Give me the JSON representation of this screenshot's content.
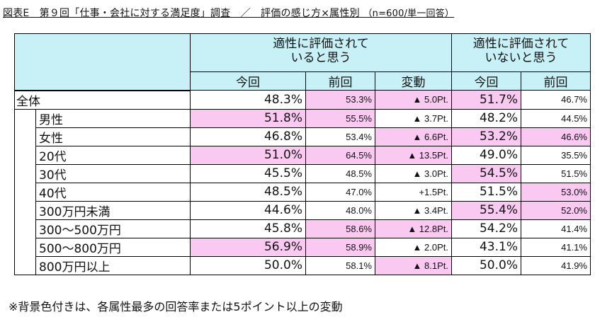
{
  "title": "図表E　第９回「仕事・会社に対する満足度」調査　／　評価の感じ方×属性別",
  "subtitle": "（n=600/単一回答）",
  "headers": {
    "group_a": "適性に評価されて\nいると思う",
    "group_b": "適性に評価されて\nいないと思う",
    "a_now": "今回",
    "a_prev": "前回",
    "a_change": "変動",
    "b_now": "今回",
    "b_prev": "前回"
  },
  "rows": [
    {
      "label": "全体",
      "a_now": "48.3%",
      "a_prev": "53.3%",
      "a_change": "▲ 5.0Pt.",
      "b_now": "51.7%",
      "b_prev": "46.7%"
    },
    {
      "label": "男性",
      "a_now": "51.8%",
      "a_prev": "55.5%",
      "a_change": "▲ 3.7Pt.",
      "b_now": "48.2%",
      "b_prev": "44.5%"
    },
    {
      "label": "女性",
      "a_now": "46.8%",
      "a_prev": "53.4%",
      "a_change": "▲ 6.6Pt.",
      "b_now": "53.2%",
      "b_prev": "46.6%"
    },
    {
      "label": "20代",
      "a_now": "51.0%",
      "a_prev": "64.5%",
      "a_change": "▲ 13.5Pt.",
      "b_now": "49.0%",
      "b_prev": "35.5%"
    },
    {
      "label": "30代",
      "a_now": "45.5%",
      "a_prev": "48.5%",
      "a_change": "▲ 3.0Pt.",
      "b_now": "54.5%",
      "b_prev": "51.5%"
    },
    {
      "label": "40代",
      "a_now": "48.5%",
      "a_prev": "47.0%",
      "a_change": "+1.5Pt.",
      "b_now": "51.5%",
      "b_prev": "53.0%"
    },
    {
      "label": "300万円未満",
      "a_now": "44.6%",
      "a_prev": "48.0%",
      "a_change": "▲ 3.4Pt.",
      "b_now": "55.4%",
      "b_prev": "52.0%"
    },
    {
      "label": "300～500万円",
      "a_now": "45.8%",
      "a_prev": "58.6%",
      "a_change": "▲ 12.8Pt.",
      "b_now": "54.2%",
      "b_prev": "41.4%"
    },
    {
      "label": "500～800万円",
      "a_now": "56.9%",
      "a_prev": "58.9%",
      "a_change": "▲ 2.0Pt.",
      "b_now": "43.1%",
      "b_prev": "41.1%"
    },
    {
      "label": "800万円以上",
      "a_now": "50.0%",
      "a_prev": "58.1%",
      "a_change": "▲ 8.1Pt.",
      "b_now": "50.0%",
      "b_prev": "41.9%"
    }
  ],
  "highlights": [
    {
      "a_now": false,
      "a_prev": true,
      "a_change": true,
      "b_now": true,
      "b_prev": false
    },
    {
      "a_now": true,
      "a_prev": true,
      "a_change": false,
      "b_now": false,
      "b_prev": false
    },
    {
      "a_now": false,
      "a_prev": false,
      "a_change": true,
      "b_now": true,
      "b_prev": true
    },
    {
      "a_now": true,
      "a_prev": true,
      "a_change": true,
      "b_now": false,
      "b_prev": false
    },
    {
      "a_now": false,
      "a_prev": false,
      "a_change": false,
      "b_now": true,
      "b_prev": false
    },
    {
      "a_now": false,
      "a_prev": false,
      "a_change": false,
      "b_now": false,
      "b_prev": true
    },
    {
      "a_now": false,
      "a_prev": false,
      "a_change": false,
      "b_now": true,
      "b_prev": true
    },
    {
      "a_now": false,
      "a_prev": true,
      "a_change": true,
      "b_now": false,
      "b_prev": false
    },
    {
      "a_now": true,
      "a_prev": true,
      "a_change": false,
      "b_now": false,
      "b_prev": false
    },
    {
      "a_now": false,
      "a_prev": false,
      "a_change": true,
      "b_now": false,
      "b_prev": false
    }
  ],
  "note": "※背景色付きは、各属性最多の回答率または5ポイント以上の変動",
  "colors": {
    "header_bg": "#c7f0f7",
    "highlight_bg": "#f9c9f1"
  }
}
